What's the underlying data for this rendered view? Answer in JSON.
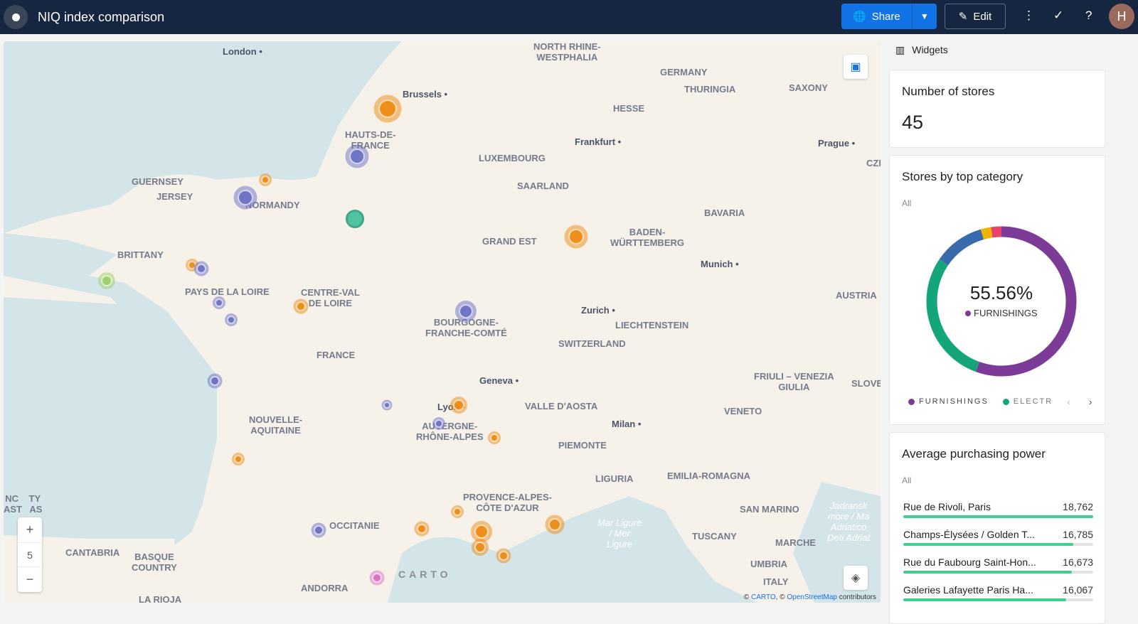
{
  "app": {
    "title": "NIQ index comparison",
    "avatar_initial": "H"
  },
  "toolbar": {
    "share_label": "Share",
    "edit_label": "Edit"
  },
  "map": {
    "zoom_level": "5",
    "watermark": "CARTO",
    "attribution": {
      "carto": "CARTO",
      "osm": "OpenStreetMap",
      "suffix": "contributors"
    },
    "region_labels": [
      "NORTH RHINE-\nWESTPHALIA",
      "GERMANY",
      "THURINGIA",
      "SAXONY",
      "HESSE",
      "HAUTS-DE-\nFRANCE",
      "LUXEMBOURG",
      "GUERNSEY",
      "JERSEY",
      "NORMANDY",
      "SAARLAND",
      "BAVARIA",
      "GRAND EST",
      "BADEN-\nWÜRTTEMBERG",
      "BRITTANY",
      "PAYS DE LA LOIRE",
      "CENTRE-VAL\nDE LOIRE",
      "AUSTRIA",
      "LIECHTENSTEIN",
      "BOURGOGNE-\nFRANCHE-COMTÉ",
      "SWITZERLAND",
      "FRANCE",
      "FRIULI – VENEZIA\nGIULIA",
      "SLOVENI",
      "VALLE D'AOSTA",
      "VENETO",
      "NOUVELLE-\nAQUITAINE",
      "AUVERGNE-\nRHÔNE-ALPES",
      "PIEMONTE",
      "LIGURIA",
      "EMILIA-ROMAGNA",
      "PROVENCE-ALPES-\nCÔTE D'AZUR",
      "OCCITANIE",
      "SAN MARINO",
      "TUSCANY",
      "MARCHE",
      "UMBRIA",
      "ITALY",
      "CANTABRIA",
      "BASQUE\nCOUNTRY",
      "ANDORRA",
      "LA RIOJA",
      "CZE",
      "NC    TY\nAST   AS"
    ],
    "sea_labels": [
      "Mar Ligure\n/ Mer\nLigure",
      "Jadransk\nmore / Ma\nAdriatico\nDeti Adriat"
    ],
    "cities": [
      "London",
      "Brussels",
      "Frankfurt",
      "Prague",
      "Munich",
      "Zurich",
      "Geneva",
      "Lyon",
      "Milan"
    ],
    "marker_colors": {
      "orange": "#ee8a12",
      "blue": "#6a6fc4",
      "green": "#3fbf9b",
      "lime": "#9dd06a",
      "pink": "#d96fc4"
    }
  },
  "widgets": {
    "header": "Widgets",
    "stores": {
      "title": "Number of stores",
      "value": "45"
    },
    "category": {
      "title": "Stores by top category",
      "filter": "All",
      "center_value": "55.56%",
      "center_label": "FURNISHINGS",
      "legend": [
        {
          "label": "FURNISHINGS",
          "color": "#7b3b96"
        },
        {
          "label": "ELECTR",
          "color": "#14a57a"
        }
      ],
      "chart_data": {
        "type": "pie",
        "donut": true,
        "series": [
          {
            "name": "FURNISHINGS",
            "value": 25,
            "percent": 55.56,
            "color": "#7b3b96"
          },
          {
            "value": 13,
            "color": "#14a57a"
          },
          {
            "value": 5,
            "color": "#3a6aae"
          },
          {
            "value": 1,
            "color": "#f0b400"
          },
          {
            "value": 1,
            "color": "#e8436e"
          }
        ]
      }
    },
    "purchasing": {
      "title": "Average purchasing power",
      "filter": "All",
      "max": 18762,
      "rows": [
        {
          "name": "Rue de Rivoli, Paris",
          "value": "18,762",
          "num": 18762
        },
        {
          "name": "Champs-Élysées / Golden T...",
          "value": "16,785",
          "num": 16785
        },
        {
          "name": "Rue du Faubourg Saint-Hon...",
          "value": "16,673",
          "num": 16673
        },
        {
          "name": "Galeries Lafayette Paris Ha...",
          "value": "16,067",
          "num": 16067
        }
      ]
    }
  }
}
